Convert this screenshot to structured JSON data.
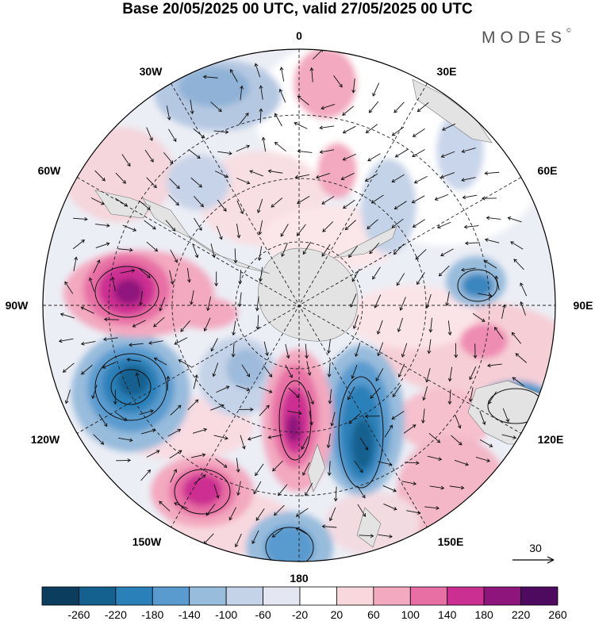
{
  "header": {
    "title": "Base 20/05/2025 00 UTC, valid 27/05/2025 00 UTC",
    "brand": "MODES",
    "brand_mark": "©"
  },
  "map": {
    "projection": "south polar stereographic",
    "longitude_labels": {
      "top": "0",
      "top_right": "30E",
      "upper_right": "60E",
      "right": "90E",
      "lower_right": "120E",
      "bottom_right": "150E",
      "bottom": "180",
      "bottom_left": "150W",
      "lower_left": "120W",
      "left": "90W",
      "upper_left": "60W",
      "top_left": "30W"
    },
    "reference_vector": "30",
    "field_colors": {
      "ocean_background": "#ffffff",
      "land": "#e3e3e3"
    }
  },
  "colorbar": {
    "ticks": [
      "-260",
      "-220",
      "-180",
      "-140",
      "-100",
      "-60",
      "-20",
      "20",
      "60",
      "100",
      "140",
      "180",
      "220",
      "260"
    ],
    "colors": [
      "#0b3d5e",
      "#14608f",
      "#2a80b8",
      "#5a9bcf",
      "#98bcdc",
      "#c5d3e8",
      "#e4e6f1",
      "#ffffff",
      "#f8d8dc",
      "#f3a9c0",
      "#e76fa4",
      "#cc2f92",
      "#8e157b",
      "#4e0a5e"
    ]
  }
}
